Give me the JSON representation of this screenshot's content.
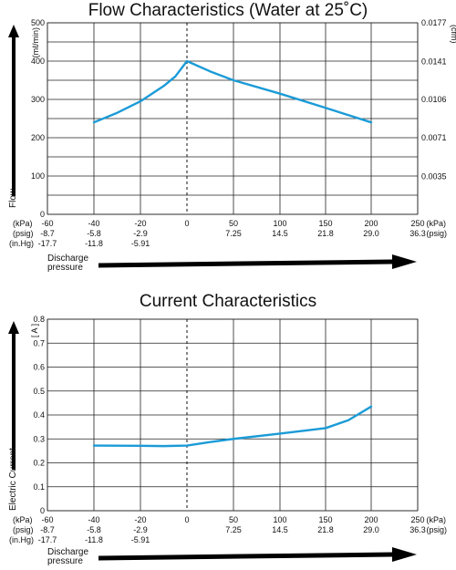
{
  "chart_data": [
    {
      "type": "line",
      "title": "Flow Characteristics (Water at 25˚C)",
      "ylabel": "Flow",
      "y_unit": "(mℓ/min)",
      "y2_unit": "(cfm)",
      "ylim": [
        0,
        500
      ],
      "yticks": [
        "0",
        "100",
        "200",
        "300",
        "400",
        "500"
      ],
      "y2ticks": [
        "0.0035",
        "0.0071",
        "0.0106",
        "0.0141",
        "0.0177"
      ],
      "xlim": [
        -60,
        250
      ],
      "x_axis": {
        "kpa_unit": "(kPa)",
        "psig_unit": "(psig)",
        "inhg_unit": "(in.Hg)",
        "kpa_ticks": [
          "-60",
          "-40",
          "-20",
          "0",
          "50",
          "100",
          "150",
          "200",
          "250"
        ],
        "psig_ticks": [
          "-8.7",
          "-5.8",
          "-2.9",
          "7.25",
          "14.5",
          "21.8",
          "29.0",
          "36.3"
        ],
        "inhg_ticks": [
          "-17.7",
          "-11.8",
          "-5.91"
        ],
        "kpa_unit_right": "(kPa)",
        "psig_unit_right": "(psig)",
        "arrow_label_line1": "Discharge",
        "arrow_label_line2": "pressure"
      },
      "series": [
        {
          "x": [
            -40,
            -30,
            -20,
            -10,
            -5,
            0,
            25,
            50,
            100,
            150,
            200
          ],
          "y": [
            240,
            265,
            295,
            335,
            360,
            400,
            373,
            350,
            315,
            278,
            240
          ]
        }
      ]
    },
    {
      "type": "line",
      "title": "Current Characteristics",
      "ylabel": "Electric Current",
      "y_unit": "[ A ]",
      "ylim": [
        0,
        0.8
      ],
      "yticks": [
        "0",
        "0.1",
        "0.2",
        "0.3",
        "0.4",
        "0.5",
        "0.6",
        "0.7",
        "0.8"
      ],
      "xlim": [
        -60,
        250
      ],
      "x_axis": {
        "kpa_unit": "(kPa)",
        "psig_unit": "(psig)",
        "inhg_unit": "(in.Hg)",
        "kpa_ticks": [
          "-60",
          "-40",
          "-20",
          "0",
          "50",
          "100",
          "150",
          "200",
          "250"
        ],
        "psig_ticks": [
          "-8.7",
          "-5.8",
          "-2.9",
          "7.25",
          "14.5",
          "21.8",
          "29.0",
          "36.3"
        ],
        "inhg_ticks": [
          "-17.7",
          "-11.8",
          "-5.91"
        ],
        "kpa_unit_right": "(kPa)",
        "psig_unit_right": "(psig)",
        "arrow_label_line1": "Discharge",
        "arrow_label_line2": "pressure"
      },
      "series": [
        {
          "x": [
            -40,
            -20,
            -10,
            0,
            25,
            50,
            100,
            150,
            175,
            200
          ],
          "y": [
            0.272,
            0.271,
            0.27,
            0.272,
            0.287,
            0.3,
            0.322,
            0.345,
            0.378,
            0.435
          ]
        }
      ]
    }
  ],
  "colors": {
    "curve": "#1b9bd7",
    "grid": "#222222",
    "text": "#111111"
  },
  "icons": {
    "axis_arrows": "arrow-icon"
  }
}
